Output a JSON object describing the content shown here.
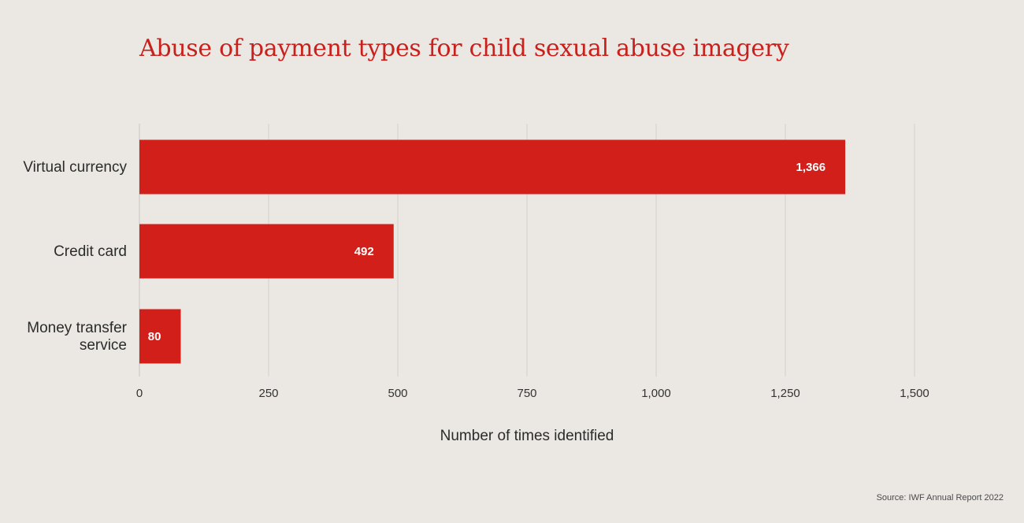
{
  "chart_data": {
    "type": "bar",
    "orientation": "horizontal",
    "title": "Abuse of payment types for child sexual abuse imagery",
    "categories": [
      "Virtual currency",
      "Credit card",
      "Money transfer service"
    ],
    "values": [
      1366,
      492,
      80
    ],
    "value_labels": [
      "1,366",
      "492",
      "80"
    ],
    "xlabel": "Number of times identified",
    "ylabel": "",
    "xlim": [
      0,
      1500
    ],
    "x_ticks": [
      0,
      250,
      500,
      750,
      1000,
      1250,
      1500
    ],
    "x_tick_labels": [
      "0",
      "250",
      "500",
      "750",
      "1,000",
      "1,250",
      "1,500"
    ],
    "grid": "vertical",
    "legend": "none",
    "bar_color": "#d21f1a",
    "label_color": "#ffffff"
  },
  "source": "Source: IWF Annual Report 2022"
}
